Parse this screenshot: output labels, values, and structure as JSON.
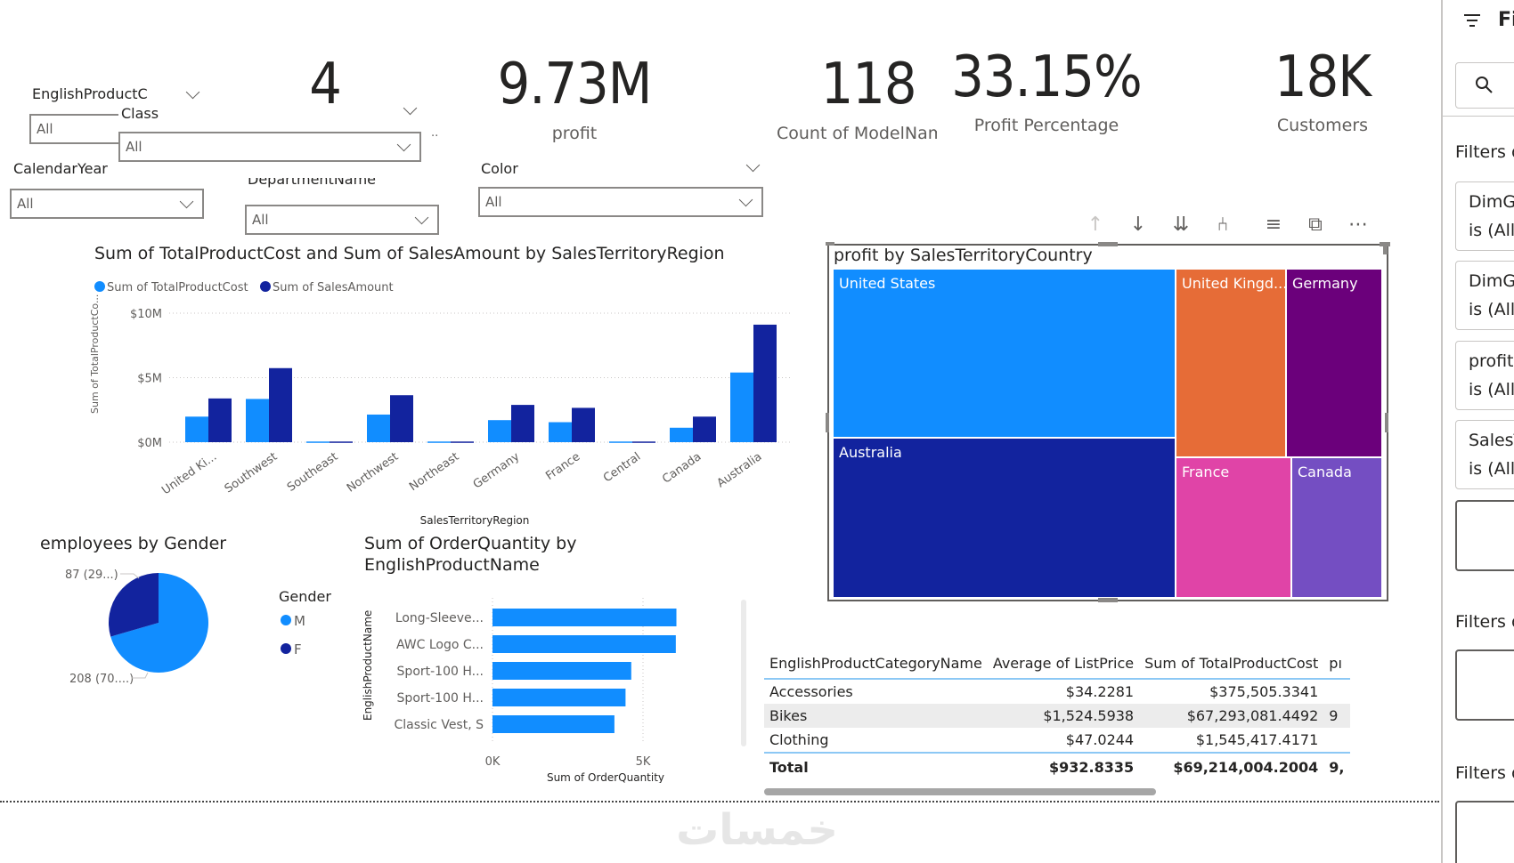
{
  "slicers": {
    "product_category": {
      "title": "EnglishProductC",
      "value": "All"
    },
    "class": {
      "title": "Class",
      "value": "All"
    },
    "calendar_year": {
      "title": "CalendarYear",
      "value": "All"
    },
    "department": {
      "title": "DepartmentName",
      "value": "All"
    },
    "color": {
      "title": "Color",
      "value": "All"
    }
  },
  "cards": [
    {
      "value": "4",
      "label": ""
    },
    {
      "value": "9.73M",
      "label": "profit"
    },
    {
      "value": "118",
      "label": "Count of ModelNam"
    },
    {
      "value": "33.15%",
      "label": "Profit Percentage"
    },
    {
      "value": "18K",
      "label": "Customers"
    }
  ],
  "chart_data": [
    {
      "type": "bar",
      "title": "Sum of TotalProductCost and Sum of SalesAmount by SalesTerritoryRegion",
      "xlabel": "SalesTerritoryRegion",
      "ylabel": "Sum of TotalProductCo...",
      "ylim": [
        0,
        10
      ],
      "yticks": [
        "$0M",
        "$5M",
        "$10M"
      ],
      "ytick_values": [
        0,
        5,
        10
      ],
      "legend_position": "top-left",
      "grid": true,
      "categories": [
        "United Ki...",
        "Southwest",
        "Southeast",
        "Northwest",
        "Northeast",
        "Germany",
        "France",
        "Central",
        "Canada",
        "Australia"
      ],
      "series": [
        {
          "name": "Sum of TotalProductCost",
          "color": "#118dff",
          "values": [
            1.98,
            3.35,
            0.05,
            2.14,
            0.05,
            1.71,
            1.55,
            0.05,
            1.12,
            5.4
          ]
        },
        {
          "name": "Sum of SalesAmount",
          "color": "#12239e",
          "values": [
            3.39,
            5.74,
            0.05,
            3.64,
            0.05,
            2.89,
            2.66,
            0.05,
            1.98,
            9.11
          ]
        }
      ]
    },
    {
      "type": "treemap",
      "title": "profit by SalesTerritoryCountry",
      "items": [
        {
          "label": "United States",
          "color": "#118dff"
        },
        {
          "label": "Australia",
          "color": "#12239e"
        },
        {
          "label": "United Kingd...",
          "color": "#e66c37"
        },
        {
          "label": "Germany",
          "color": "#6b007b"
        },
        {
          "label": "France",
          "color": "#e044a7"
        },
        {
          "label": "Canada",
          "color": "#744ec2"
        }
      ]
    },
    {
      "type": "pie",
      "title": "employees by Gender",
      "legend_title": "Gender",
      "legend_position": "right",
      "slices": [
        {
          "name": "M",
          "value": 208,
          "label": "208 (70....)",
          "color": "#118dff"
        },
        {
          "name": "F",
          "value": 87,
          "label": "87 (29...)",
          "color": "#12239e"
        }
      ]
    },
    {
      "type": "bar",
      "orientation": "horizontal",
      "title_line1": "Sum of OrderQuantity by",
      "title_line2": "EnglishProductName",
      "xlabel": "Sum of OrderQuantity",
      "ylabel": "EnglishProductName",
      "xticks": [
        "0K",
        "5K"
      ],
      "xtick_values": [
        0,
        5
      ],
      "categories": [
        "Long-Sleeve...",
        "AWC Logo C...",
        "Sport-100 H...",
        "Sport-100 H...",
        "Classic Vest, S"
      ],
      "values": [
        6.11,
        6.09,
        4.61,
        4.42,
        4.05
      ],
      "color": "#118dff"
    },
    {
      "type": "table",
      "columns": [
        "EnglishProductCategoryName",
        "Average of ListPrice",
        "Sum of TotalProductCost",
        "pı"
      ],
      "rows": [
        [
          "Accessories",
          "$34.2281",
          "$375,505.3341",
          ""
        ],
        [
          "Bikes",
          "$1,524.5938",
          "$67,293,081.4492",
          "9"
        ],
        [
          "Clothing",
          "$47.0244",
          "$1,545,417.4171",
          ""
        ]
      ],
      "total": [
        "Total",
        "$932.8335",
        "$69,214,004.2004",
        "9,"
      ]
    }
  ],
  "visual_toolbar": [
    "drill-up-icon",
    "drill-down-icon",
    "expand-all-icon",
    "expand-hierarchy-icon",
    "filter-icon",
    "focus-mode-icon",
    "more-options-icon"
  ],
  "filter_pane": {
    "title": "Fi",
    "section1": "Filters o",
    "cards": [
      {
        "line1": "DimG",
        "line2": "is (All)"
      },
      {
        "line1": "DimG",
        "line2": "is (All)"
      },
      {
        "line1": "profit",
        "line2": "is (All)"
      },
      {
        "line1": "SalesT",
        "line2": "is (All)"
      }
    ],
    "section2": "Filters o",
    "section3": "Filters o"
  },
  "watermark": "خمسات"
}
